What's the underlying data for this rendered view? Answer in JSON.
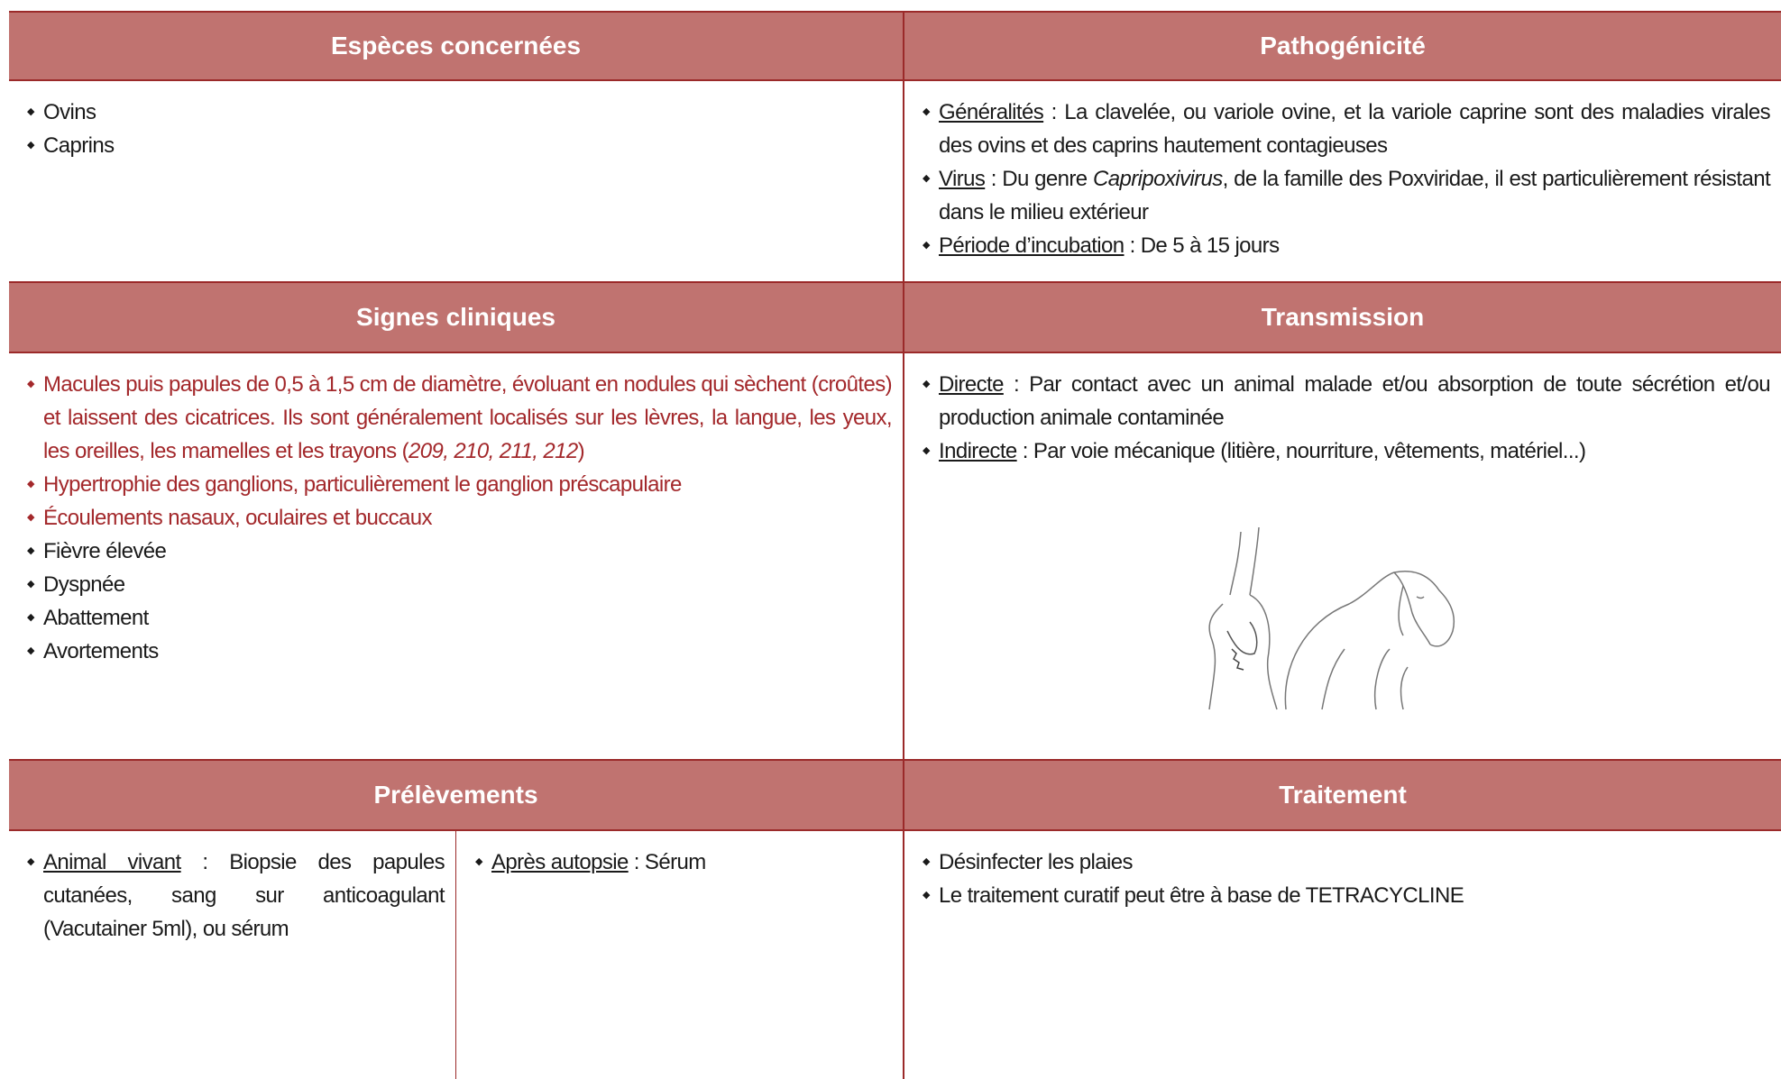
{
  "sections": [
    {
      "title": "Espèces concernées",
      "items": [
        {
          "segments": [
            {
              "text": "Ovins"
            }
          ]
        },
        {
          "segments": [
            {
              "text": "Caprins"
            }
          ]
        }
      ]
    },
    {
      "title": "Pathogénicité",
      "items": [
        {
          "segments": [
            {
              "text": "Généralités",
              "style": "underline"
            },
            {
              "text": " : La clavelée, ou variole ovine, et la variole caprine sont des maladies virales des ovins et des caprins hautement contagieuses"
            }
          ]
        },
        {
          "segments": [
            {
              "text": "Virus",
              "style": "underline"
            },
            {
              "text": " : Du genre "
            },
            {
              "text": "Capripoxivirus",
              "style": "italic"
            },
            {
              "text": ", de la famille des Poxviridae, il est particulièrement résistant dans le milieu extérieur"
            }
          ]
        },
        {
          "segments": [
            {
              "text": "Période d’incubation",
              "style": "underline"
            },
            {
              "text": " : De 5 à 15 jours"
            }
          ]
        }
      ]
    },
    {
      "title": "Signes cliniques",
      "items": [
        {
          "color": "#a3282b",
          "segments": [
            {
              "text": "Macules puis papules de 0,5 à 1,5 cm de diamètre, évoluant en nodules qui sèchent (croûtes) et laissent des cicatrices. Ils sont généralement localisés sur les lèvres, la langue, les yeux, les oreilles, les mamelles et les trayons ("
            },
            {
              "text": "209, 210, 211, 212",
              "style": "italic"
            },
            {
              "text": ")"
            }
          ]
        },
        {
          "color": "#a3282b",
          "segments": [
            {
              "text": "Hypertrophie des ganglions, particulièrement le ganglion préscapulaire"
            }
          ]
        },
        {
          "color": "#a3282b",
          "segments": [
            {
              "text": "Écoulements nasaux, oculaires et buccaux"
            }
          ]
        },
        {
          "segments": [
            {
              "text": "Fièvre élevée"
            }
          ]
        },
        {
          "segments": [
            {
              "text": "Dyspnée"
            }
          ]
        },
        {
          "segments": [
            {
              "text": "Abattement"
            }
          ]
        },
        {
          "segments": [
            {
              "text": "Avortements"
            }
          ]
        }
      ]
    },
    {
      "title": "Transmission",
      "items": [
        {
          "segments": [
            {
              "text": "Directe",
              "style": "underline"
            },
            {
              "text": " : Par contact avec un animal malade et/ou absorption de toute sécrétion et/ou production animale contaminée"
            }
          ]
        },
        {
          "segments": [
            {
              "text": "Indirecte",
              "style": "underline"
            },
            {
              "text": " : Par voie mécanique (litière, nourriture, vêtements, matériel...)"
            }
          ]
        }
      ]
    },
    {
      "title": "Prélèvements",
      "columns": [
        [
          {
            "segments": [
              {
                "text": "Animal vivant",
                "style": "underline"
              },
              {
                "text": " : Biopsie des papules cutanées, sang sur anticoagulant (Vacutainer 5ml), ou sérum"
              }
            ]
          }
        ],
        [
          {
            "segments": [
              {
                "text": "Après autopsie",
                "style": "underline"
              },
              {
                "text": " : Sérum"
              }
            ]
          }
        ]
      ]
    },
    {
      "title": "Traitement",
      "items": [
        {
          "segments": [
            {
              "text": "Désinfecter les plaies"
            }
          ]
        },
        {
          "segments": [
            {
              "text": "Le traitement curatif peut être à base de TETRACYCLINE"
            }
          ]
        }
      ]
    }
  ]
}
